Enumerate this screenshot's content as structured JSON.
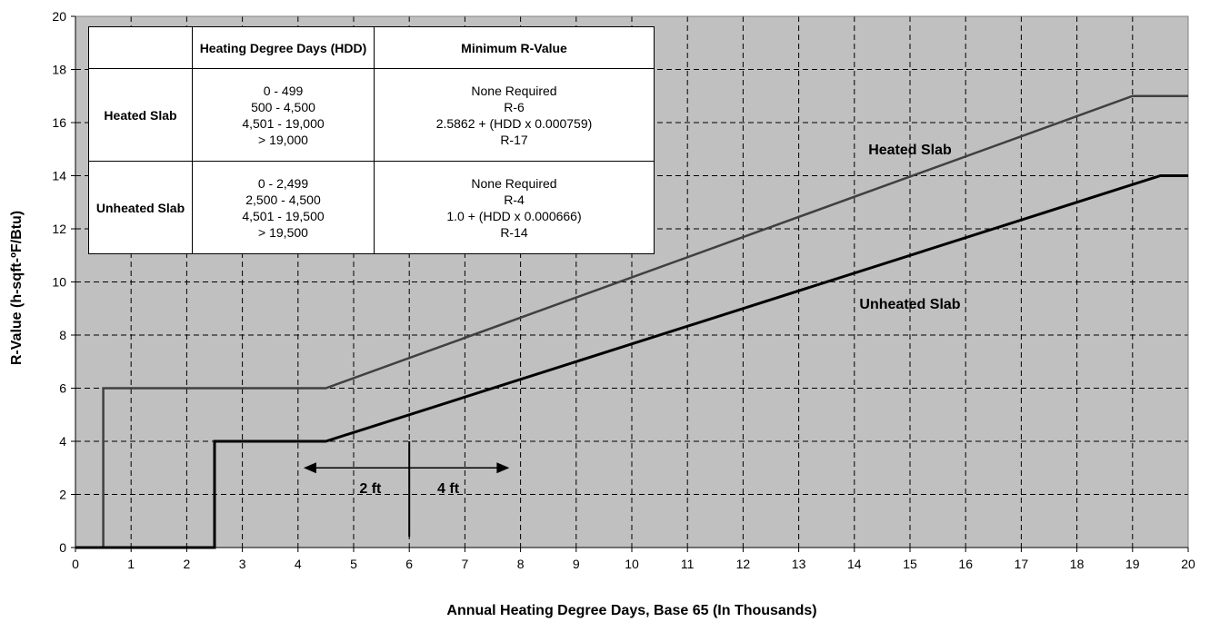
{
  "chart_data": {
    "type": "line",
    "xlabel": "Annual Heating Degree Days, Base 65 (In Thousands)",
    "ylabel": "R-Value (h-sqft-ºF/Btu)",
    "xlim": [
      0,
      20
    ],
    "ylim": [
      0,
      20
    ],
    "x_ticks": [
      "0",
      "1",
      "2",
      "3",
      "4",
      "5",
      "6",
      "7",
      "8",
      "9",
      "10",
      "11",
      "12",
      "13",
      "14",
      "15",
      "16",
      "17",
      "18",
      "19",
      "20"
    ],
    "y_ticks": [
      "0",
      "2",
      "4",
      "6",
      "8",
      "10",
      "12",
      "14",
      "16",
      "18",
      "20"
    ],
    "grid": true,
    "series": [
      {
        "name": "Heated Slab",
        "color": "#404040",
        "points": [
          [
            0,
            0
          ],
          [
            0.5,
            0
          ],
          [
            0.5,
            6
          ],
          [
            4.5,
            6
          ],
          [
            19.0,
            17.0
          ],
          [
            20.0,
            17.0
          ]
        ]
      },
      {
        "name": "Unheated Slab",
        "color": "#000000",
        "points": [
          [
            0,
            0
          ],
          [
            2.5,
            0
          ],
          [
            2.5,
            4
          ],
          [
            4.5,
            4
          ],
          [
            19.5,
            14.0
          ],
          [
            20.0,
            14.0
          ]
        ]
      }
    ],
    "series_label_positions": [
      {
        "series": "Heated Slab",
        "x": 15.0,
        "y": 14.8
      },
      {
        "series": "Unheated Slab",
        "x": 15.0,
        "y": 9.0
      }
    ],
    "annotations": {
      "divider_x": 6.0,
      "divider_y_range": [
        0.4,
        4.0
      ],
      "arrow": {
        "x_from": 4.1,
        "x_to": 7.8,
        "y": 3.0
      },
      "labels": [
        {
          "text": "2 ft",
          "x": 5.3,
          "y": 2.05
        },
        {
          "text": "4 ft",
          "x": 6.7,
          "y": 2.05
        }
      ]
    }
  },
  "table": {
    "headers": [
      "",
      "Heating Degree Days (HDD)",
      "Minimum R-Value"
    ],
    "rows": [
      {
        "name": "Heated Slab",
        "hdd": [
          "0 - 499",
          "500 - 4,500",
          "4,501 - 19,000",
          "> 19,000"
        ],
        "rvalue": [
          "None Required",
          "R-6",
          "2.5862 + (HDD x 0.000759)",
          "R-17"
        ]
      },
      {
        "name": "Unheated Slab",
        "hdd": [
          "0 - 2,499",
          "2,500 - 4,500",
          "4,501 - 19,500",
          "> 19,500"
        ],
        "rvalue": [
          "None Required",
          "R-4",
          "1.0 + (HDD x 0.000666)",
          "R-14"
        ]
      }
    ]
  }
}
